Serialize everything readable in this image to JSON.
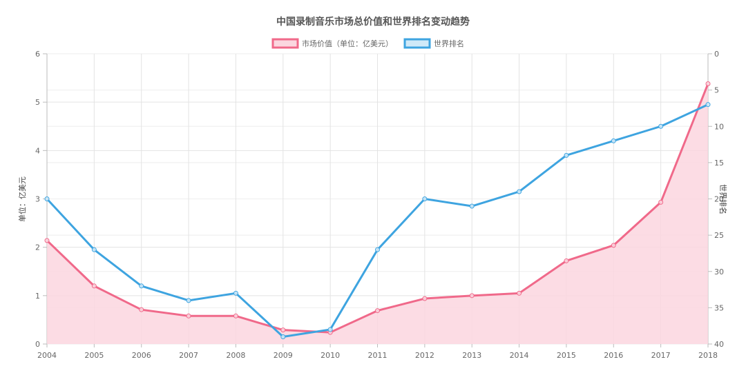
{
  "chart_data": {
    "type": "line",
    "title": "中国录制音乐市场总价值和世界排名变动趋势",
    "categories": [
      "2004",
      "2005",
      "2006",
      "2007",
      "2008",
      "2009",
      "2010",
      "2011",
      "2012",
      "2013",
      "2014",
      "2015",
      "2016",
      "2017",
      "2018"
    ],
    "series": [
      {
        "name": "市场价值（单位：亿美元）",
        "axis": "left",
        "fill": true,
        "color": "#f0698a",
        "fill_color": "#fbd6df",
        "values": [
          2.14,
          1.2,
          0.71,
          0.58,
          0.58,
          0.29,
          0.24,
          0.69,
          0.94,
          1.0,
          1.05,
          1.72,
          2.04,
          2.93,
          5.38
        ]
      },
      {
        "name": "世界排名",
        "axis": "right",
        "fill": false,
        "color": "#3ea4e0",
        "fill_color": "#cfe9f8",
        "values": [
          20,
          27,
          32,
          34,
          33,
          39,
          38,
          27,
          20,
          21,
          19,
          14,
          12,
          10,
          7
        ]
      }
    ],
    "y_left": {
      "label": "单位：亿美元",
      "min": 0,
      "max": 6,
      "ticks": [
        "0",
        "1",
        "2",
        "3",
        "4",
        "5",
        "6"
      ]
    },
    "y_right": {
      "label": "世界排名",
      "min": 0,
      "max": 40,
      "reversed": true,
      "ticks": [
        "0",
        "5",
        "10",
        "15",
        "20",
        "25",
        "30",
        "35",
        "40"
      ]
    },
    "grid": true,
    "legend_position": "top"
  }
}
